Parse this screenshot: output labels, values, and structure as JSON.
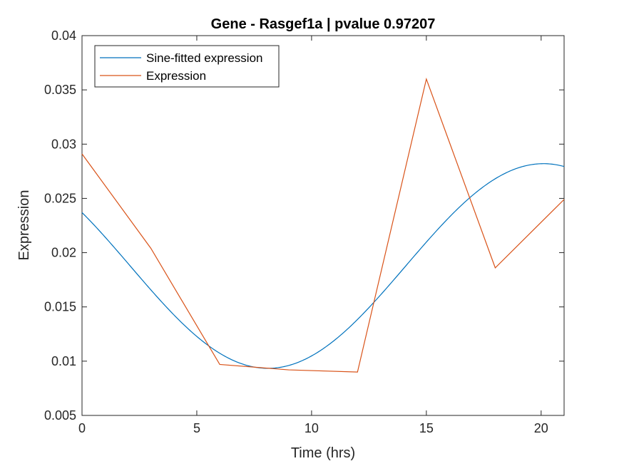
{
  "chart_data": {
    "type": "line",
    "title": "Gene - Rasgef1a | pvalue 0.97207",
    "xlabel": "Time (hrs)",
    "ylabel": "Expression",
    "xlim": [
      0,
      21
    ],
    "ylim": [
      0.005,
      0.04
    ],
    "xticks": [
      0,
      5,
      10,
      15,
      20
    ],
    "xtick_labels": [
      "0",
      "5",
      "10",
      "15",
      "20"
    ],
    "yticks": [
      0.005,
      0.01,
      0.015,
      0.02,
      0.025,
      0.03,
      0.035,
      0.04
    ],
    "ytick_labels": [
      "0.005",
      "0.01",
      "0.015",
      "0.02",
      "0.025",
      "0.03",
      "0.035",
      "0.04"
    ],
    "grid": false,
    "legend_position": "top-left",
    "series": [
      {
        "name": "Sine-fitted expression",
        "color": "#0072BD",
        "sine_fit": {
          "mean": 0.01877,
          "amplitude": 0.00943,
          "period_hrs": 24,
          "peak_time_hrs": 20.1
        },
        "x_range": [
          0,
          21
        ]
      },
      {
        "name": "Expression",
        "color": "#D95319",
        "x": [
          0,
          3,
          6,
          9,
          12,
          15,
          18,
          21
        ],
        "values": [
          0.0291,
          0.0204,
          0.0097,
          0.0092,
          0.009,
          0.036,
          0.0186,
          0.0249
        ]
      }
    ]
  }
}
